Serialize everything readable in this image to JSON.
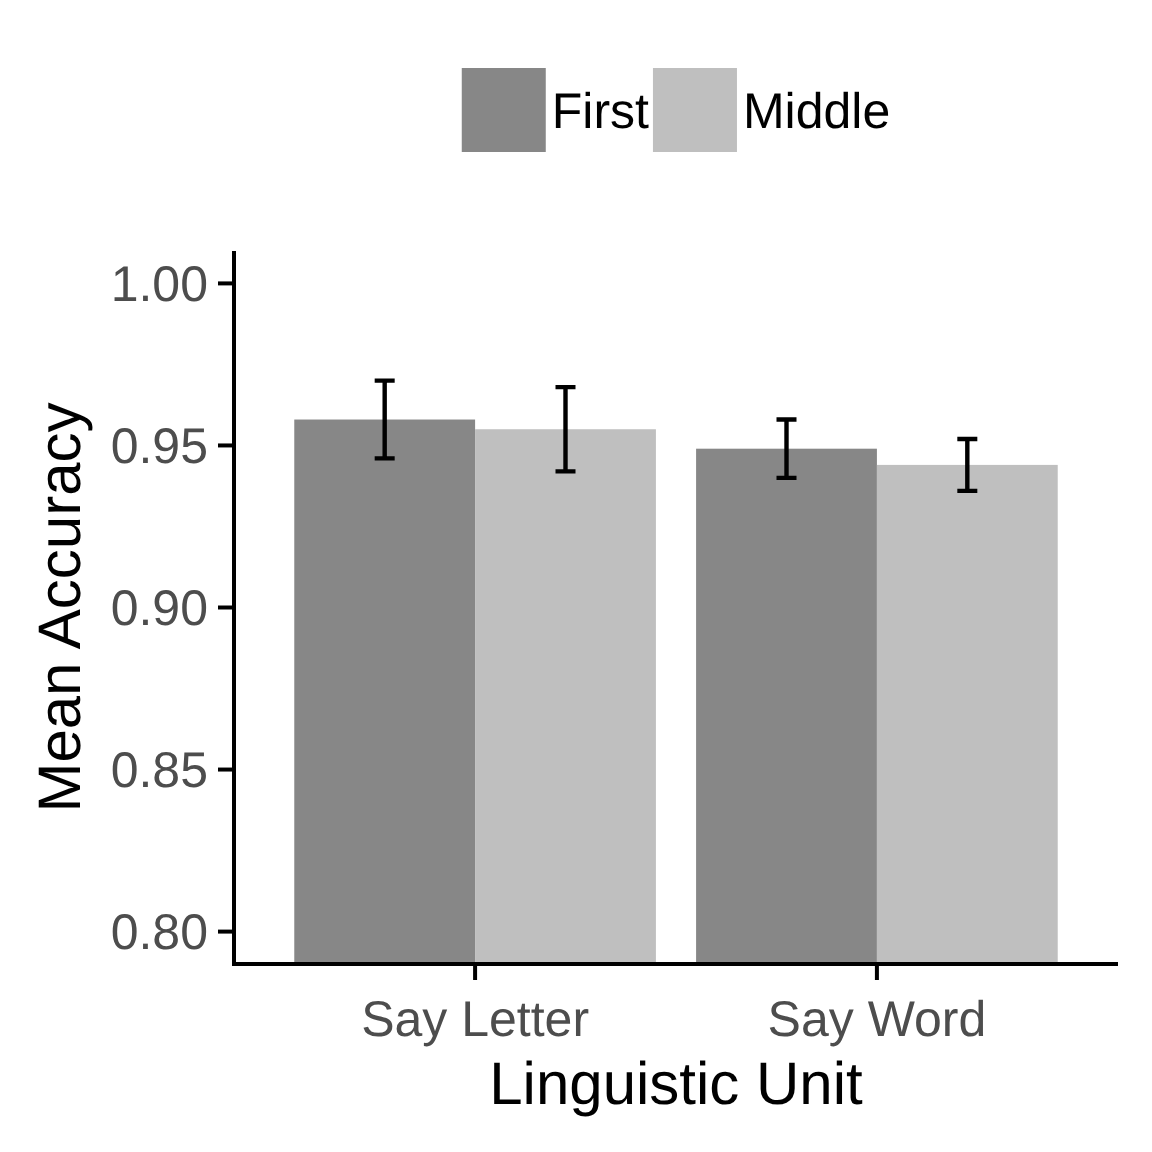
{
  "chart_data": {
    "type": "bar",
    "xlabel": "Linguistic Unit",
    "ylabel": "Mean Accuracy",
    "categories": [
      "Say Letter",
      "Say Word"
    ],
    "series": [
      {
        "name": "First",
        "color": "#878787",
        "values": [
          0.958,
          0.949
        ],
        "errors": [
          0.012,
          0.009
        ]
      },
      {
        "name": "Middle",
        "color": "#bfbfbf",
        "values": [
          0.955,
          0.944
        ],
        "errors": [
          0.013,
          0.008
        ]
      }
    ],
    "ylim": [
      0.79,
      1.01
    ],
    "yticks": [
      {
        "value": 0.8,
        "label": "0.80"
      },
      {
        "value": 0.85,
        "label": "0.85"
      },
      {
        "value": 0.9,
        "label": "0.90"
      },
      {
        "value": 0.95,
        "label": "0.95"
      },
      {
        "value": 1.0,
        "label": "1.00"
      }
    ],
    "legend": "top",
    "grid": false
  }
}
